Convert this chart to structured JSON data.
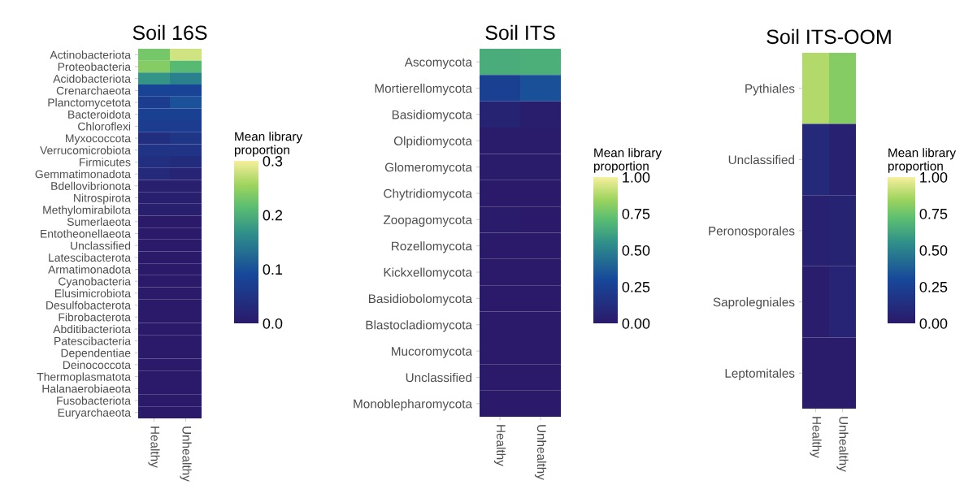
{
  "chart_data": [
    {
      "type": "heatmap",
      "title": "Soil 16S",
      "clabel": "Mean library proportion",
      "categories": [
        "Healthy",
        "Unhealthy"
      ],
      "y_categories": [
        "Actinobacteriota",
        "Proteobacteria",
        "Acidobacteriota",
        "Crenarchaeota",
        "Planctomycetota",
        "Bacteroidota",
        "Chloroflexi",
        "Myxococcota",
        "Verrucomicrobiota",
        "Firmicutes",
        "Gemmatimonadota",
        "Bdellovibrionota",
        "Nitrospirota",
        "Methylomirabilota",
        "Sumerlaeota",
        "Entotheonellaeota",
        "Unclassified",
        "Latescibacterota",
        "Armatimonadota",
        "Cyanobacteria",
        "Elusimicrobiota",
        "Desulfobacterota",
        "Fibrobacterota",
        "Abditibacteriota",
        "Patescibacteria",
        "Dependentiae",
        "Deinococcota",
        "Thermoplasmatota",
        "Halanaerobiaeota",
        "Fusobacteriota",
        "Euryarchaeota"
      ],
      "cells": [
        [
          0.23,
          0.28
        ],
        [
          0.24,
          0.21
        ],
        [
          0.17,
          0.15
        ],
        [
          0.08,
          0.08
        ],
        [
          0.07,
          0.1
        ],
        [
          0.075,
          0.075
        ],
        [
          0.07,
          0.07
        ],
        [
          0.04,
          0.055
        ],
        [
          0.05,
          0.05
        ],
        [
          0.04,
          0.035
        ],
        [
          0.03,
          0.02
        ],
        [
          0.01,
          0.01
        ],
        [
          0.01,
          0.01
        ],
        [
          0.01,
          0.01
        ],
        [
          0.0,
          0.0
        ],
        [
          0.0,
          0.0
        ],
        [
          0.0,
          0.0
        ],
        [
          0.0,
          0.0
        ],
        [
          0.0,
          0.0
        ],
        [
          0.0,
          0.0
        ],
        [
          0.0,
          0.0
        ],
        [
          0.0,
          0.0
        ],
        [
          0.0,
          0.0
        ],
        [
          0.0,
          0.0
        ],
        [
          0.0,
          0.0
        ],
        [
          0.0,
          0.0
        ],
        [
          0.0,
          0.0
        ],
        [
          0.0,
          0.0
        ],
        [
          0.0,
          0.0
        ],
        [
          0.0,
          0.0
        ],
        [
          0.0,
          0.0
        ]
      ],
      "clim": [
        0,
        0.3
      ],
      "cticks": [
        {
          "value": 0,
          "label": "0.0"
        },
        0.1,
        0.2,
        0.3
      ]
    },
    {
      "type": "heatmap",
      "title": "Soil ITS",
      "clabel": "Mean library proportion",
      "categories": [
        "Healthy",
        "Unhealthy"
      ],
      "y_categories": [
        "Ascomycota",
        "Mortierellomycota",
        "Basidiomycota",
        "Olpidiomycota",
        "Glomeromycota",
        "Chytridiomycota",
        "Zoopagomycota",
        "Rozellomycota",
        "Kickxellomycota",
        "Basidiobolomycota",
        "Blastocladiomycota",
        "Mucoromycota",
        "Unclassified",
        "Monoblepharomycota"
      ],
      "cells": [
        [
          0.65,
          0.66
        ],
        [
          0.25,
          0.33
        ],
        [
          0.06,
          0.03
        ],
        [
          0.01,
          0.01
        ],
        [
          0.01,
          0.01
        ],
        [
          0.0,
          0.0
        ],
        [
          0.01,
          0.0
        ],
        [
          0.0,
          0.0
        ],
        [
          0.0,
          0.0
        ],
        [
          0.0,
          0.0
        ],
        [
          0.0,
          0.0
        ],
        [
          0.0,
          0.0
        ],
        [
          0.0,
          0.0
        ],
        [
          0.0,
          0.0
        ]
      ],
      "clim": [
        0,
        1
      ],
      "cticks": [
        {
          "value": 0,
          "label": "0.00"
        },
        0.25,
        {
          "value": 0.5,
          "label": "0.50"
        },
        0.75,
        {
          "value": 1,
          "label": "1.00"
        }
      ]
    },
    {
      "type": "heatmap",
      "title": "Soil ITS-OOM",
      "clabel": "Mean library proportion",
      "categories": [
        "Healthy",
        "Unhealthy"
      ],
      "y_categories": [
        "Pythiales",
        "Unclassified",
        "Peronosporales",
        "Saprolegniales",
        "Leptomitales"
      ],
      "cells": [
        [
          0.88,
          0.8
        ],
        [
          0.1,
          0.05
        ],
        [
          0.04,
          0.06
        ],
        [
          0.02,
          0.07
        ],
        [
          0.01,
          0.01
        ]
      ],
      "clim": [
        0,
        1
      ],
      "cticks": [
        {
          "value": 0,
          "label": "0.00"
        },
        0.25,
        {
          "value": 0.5,
          "label": "0.50"
        },
        0.75,
        {
          "value": 1,
          "label": "1.00"
        }
      ]
    }
  ]
}
